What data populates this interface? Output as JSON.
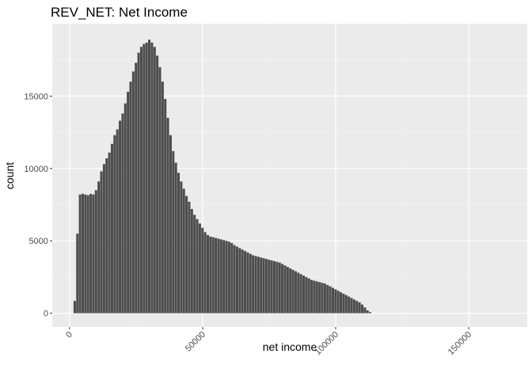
{
  "chart_data": {
    "type": "bar",
    "subtype": "histogram",
    "title": "REV_NET: Net Income",
    "xlabel": "net income",
    "ylabel": "count",
    "xlim": [
      -6500,
      172000
    ],
    "ylim": [
      -950,
      20000
    ],
    "x_ticks": [
      0,
      50000,
      100000,
      150000
    ],
    "x_tick_labels": [
      "0",
      "50000",
      "100000",
      "150000"
    ],
    "y_ticks": [
      0,
      5000,
      10000,
      15000
    ],
    "y_tick_labels": [
      "0",
      "5000",
      "10000",
      "15000"
    ],
    "x_minor_ticks": [
      25000,
      75000,
      125000
    ],
    "y_minor_ticks": [
      2500,
      7500,
      12500,
      17500
    ],
    "grid": true,
    "bin_width": 1000,
    "bin_start": 1500,
    "bar_color": "#4d4d4d",
    "panel_color": "#ebebeb",
    "values": [
      850,
      5500,
      8200,
      8250,
      8200,
      8150,
      8250,
      8200,
      8500,
      9100,
      9800,
      10300,
      10700,
      11100,
      11700,
      12300,
      12700,
      13300,
      13800,
      14500,
      15300,
      16000,
      16700,
      17300,
      18000,
      18400,
      18600,
      18700,
      18900,
      18700,
      18400,
      17800,
      17000,
      16000,
      14800,
      13500,
      12300,
      11200,
      10400,
      9700,
      9100,
      8600,
      8100,
      7700,
      7200,
      6800,
      6500,
      6200,
      5900,
      5600,
      5400,
      5300,
      5250,
      5200,
      5150,
      5100,
      5050,
      5000,
      4950,
      4850,
      4700,
      4600,
      4500,
      4400,
      4300,
      4200,
      4100,
      4000,
      3950,
      3900,
      3850,
      3800,
      3750,
      3700,
      3650,
      3600,
      3550,
      3500,
      3400,
      3300,
      3200,
      3100,
      3000,
      2900,
      2800,
      2700,
      2600,
      2500,
      2400,
      2300,
      2250,
      2200,
      2150,
      2100,
      2050,
      1950,
      1850,
      1750,
      1650,
      1550,
      1450,
      1350,
      1250,
      1150,
      1050,
      950,
      850,
      750,
      600,
      400,
      200,
      80
    ]
  }
}
